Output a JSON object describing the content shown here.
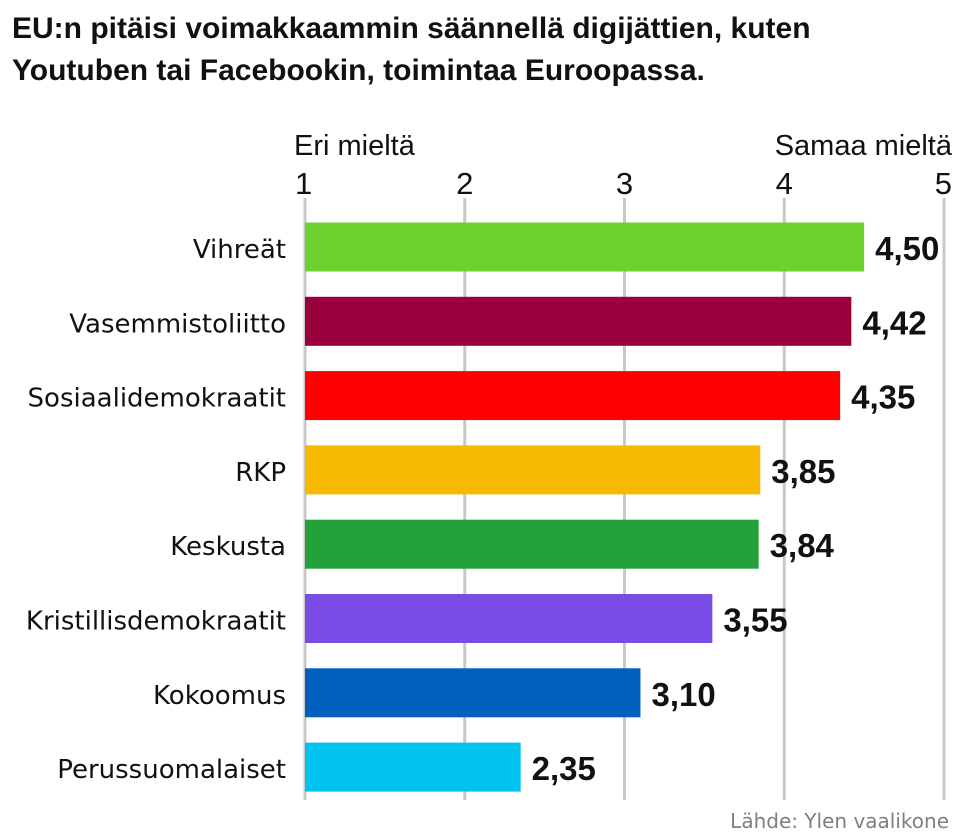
{
  "title": "EU:n pitäisi voimakkaammin säännellä digijättien, kuten Youtuben tai Facebookin, toimintaa Euroopassa.",
  "source": "Lähde: Ylen vaalikone",
  "chart_data": {
    "type": "bar",
    "orientation": "horizontal",
    "scale_left_label": "Eri mieltä",
    "scale_right_label": "Samaa mieltä",
    "xlim": [
      1,
      5
    ],
    "ticks": [
      "1",
      "2",
      "3",
      "4",
      "5"
    ],
    "grid": true,
    "categories": [
      "Vihreät",
      "Vasemmistoliitto",
      "Sosiaalidemokraatit",
      "RKP",
      "Keskusta",
      "Kristillisdemokraatit",
      "Kokoomus",
      "Perussuomalaiset"
    ],
    "values": [
      4.5,
      4.42,
      4.35,
      3.85,
      3.84,
      3.55,
      3.1,
      2.35
    ],
    "value_labels": [
      "4,50",
      "4,42",
      "4,35",
      "3,85",
      "3,84",
      "3,55",
      "3,10",
      "2,35"
    ],
    "colors": [
      "#6dd130",
      "#99003c",
      "#ff0000",
      "#f7b800",
      "#23a23c",
      "#7a4ce6",
      "#0060bc",
      "#00c3ef"
    ]
  }
}
